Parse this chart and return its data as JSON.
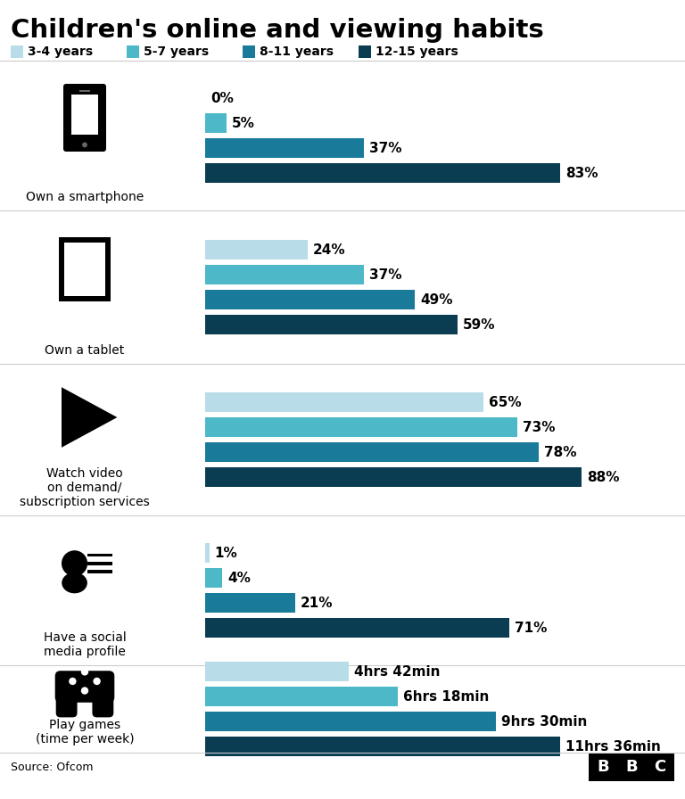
{
  "title": "Children's online and viewing habits",
  "colors": [
    "#b8dce8",
    "#4db8c8",
    "#1a7a9a",
    "#0a3d52"
  ],
  "legend_labels": [
    "3-4 years",
    "5-7 years",
    "8-11 years",
    "12-15 years"
  ],
  "sections": [
    {
      "label": "Own a smartphone",
      "values": [
        0,
        5,
        37,
        83
      ],
      "labels": [
        "0%",
        "5%",
        "37%",
        "83%"
      ],
      "is_games": false
    },
    {
      "label": "Own a tablet",
      "values": [
        24,
        37,
        49,
        59
      ],
      "labels": [
        "24%",
        "37%",
        "49%",
        "59%"
      ],
      "is_games": false
    },
    {
      "label": "Watch video\non demand/\nsubscription services",
      "values": [
        65,
        73,
        78,
        88
      ],
      "labels": [
        "65%",
        "73%",
        "78%",
        "88%"
      ],
      "is_games": false
    },
    {
      "label": "Have a social\nmedia profile",
      "values": [
        1,
        4,
        21,
        71
      ],
      "labels": [
        "1%",
        "4%",
        "21%",
        "71%"
      ],
      "is_games": false
    },
    {
      "label": "Play games\n(time per week)",
      "values": [
        4.7,
        6.3,
        9.5,
        11.6
      ],
      "labels": [
        "4hrs 42min",
        "6hrs 18min",
        "9hrs 30min",
        "11hrs 36min"
      ],
      "is_games": true
    }
  ],
  "background_color": "#ffffff",
  "source_text": "Source: Ofcom"
}
